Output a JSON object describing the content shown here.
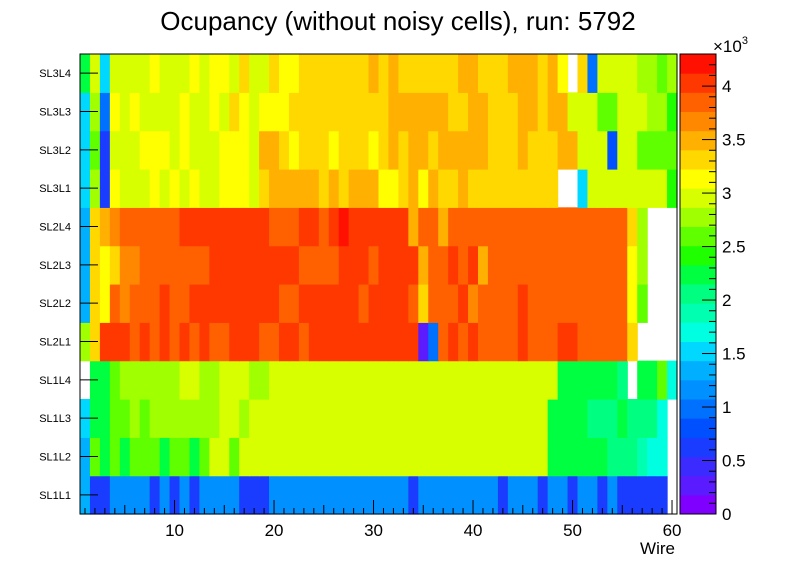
{
  "chart_data": {
    "type": "heatmap",
    "title": "Ocupancy (without noisy cells), run: 5792",
    "xlabel": "Wire",
    "ylabel": "",
    "xlim": [
      0.5,
      60.5
    ],
    "x_ticks": [
      "10",
      "20",
      "30",
      "40",
      "50",
      "60"
    ],
    "x_tick_values": [
      10,
      20,
      30,
      40,
      50,
      60
    ],
    "rows": [
      "SL1L1",
      "SL1L2",
      "SL1L3",
      "SL1L4",
      "SL2L1",
      "SL2L2",
      "SL2L3",
      "SL2L4",
      "SL3L1",
      "SL3L2",
      "SL3L3",
      "SL3L4"
    ],
    "wires": 60,
    "zlim": [
      0,
      4300
    ],
    "z_multiplier_label": "×10",
    "z_multiplier_exp": "3",
    "z_ticks": [
      "0",
      "0.5",
      "1",
      "1.5",
      "2",
      "2.5",
      "3",
      "3.5",
      "4"
    ],
    "z_tick_values": [
      0,
      500,
      1000,
      1500,
      2000,
      2500,
      3000,
      3500,
      4000
    ],
    "palette": [
      "#8000ff",
      "#5a1cff",
      "#3c2bff",
      "#1a3cff",
      "#0050ff",
      "#0070ff",
      "#0090ff",
      "#00b0ff",
      "#00d8ff",
      "#00ffe0",
      "#00ffb0",
      "#00ff80",
      "#00ff40",
      "#20ff00",
      "#60ff00",
      "#a0ff00",
      "#d8ff00",
      "#ffff00",
      "#ffd800",
      "#ffb000",
      "#ff8800",
      "#ff6000",
      "#ff3800",
      "#ff1000"
    ],
    "rows_data": {
      "SL1L1": [
        1300,
        600,
        600,
        1100,
        1100,
        1100,
        1100,
        600,
        1100,
        600,
        1100,
        600,
        1100,
        1100,
        1100,
        1100,
        600,
        600,
        600,
        1100,
        1100,
        1100,
        1100,
        1100,
        1100,
        1100,
        1100,
        1100,
        1100,
        1100,
        1100,
        1100,
        1100,
        600,
        1100,
        1100,
        1100,
        1100,
        1100,
        1100,
        1100,
        1100,
        600,
        1100,
        1100,
        1100,
        600,
        1100,
        1100,
        600,
        1100,
        1100,
        600,
        1100,
        600,
        600,
        600,
        600,
        600,
        null
      ],
      "SL1L2": [
        1400,
        2600,
        2300,
        2600,
        2300,
        2600,
        2600,
        2600,
        2300,
        2600,
        2600,
        2300,
        2600,
        2900,
        3000,
        2600,
        3000,
        3000,
        3000,
        2900,
        2900,
        3000,
        3000,
        3000,
        3000,
        3000,
        3000,
        3000,
        3000,
        3000,
        3000,
        3000,
        3000,
        3000,
        3000,
        3000,
        3000,
        3000,
        3000,
        3000,
        3000,
        3000,
        3000,
        3000,
        3000,
        3000,
        3000,
        2300,
        2300,
        2300,
        2300,
        2300,
        2300,
        2000,
        2000,
        2000,
        1900,
        1700,
        1700,
        null
      ],
      "SL1L3": [
        1500,
        2300,
        2300,
        2600,
        2600,
        2800,
        2600,
        2800,
        2800,
        2800,
        2800,
        2800,
        2800,
        2800,
        2900,
        3000,
        2800,
        2900,
        3000,
        3000,
        2900,
        2900,
        3000,
        2900,
        3000,
        3000,
        3000,
        3000,
        3000,
        3000,
        3000,
        3000,
        3000,
        3000,
        3000,
        3000,
        3000,
        3000,
        3000,
        3000,
        3000,
        3000,
        3000,
        3000,
        3000,
        3000,
        2900,
        2300,
        2300,
        2300,
        2300,
        2100,
        2100,
        2000,
        2300,
        2100,
        2100,
        2100,
        1700,
        null
      ],
      "SL1L4": [
        null,
        2300,
        2300,
        2600,
        2800,
        2800,
        2800,
        2800,
        2800,
        2800,
        3000,
        3000,
        2800,
        2800,
        3000,
        3000,
        3000,
        2800,
        2800,
        2900,
        2900,
        2900,
        2900,
        2900,
        3000,
        2900,
        3000,
        3000,
        3000,
        3000,
        3000,
        3000,
        3000,
        3000,
        3000,
        3000,
        3000,
        3000,
        3000,
        3000,
        3000,
        3000,
        3000,
        3000,
        3000,
        3000,
        3000,
        3000,
        2300,
        2300,
        2300,
        2300,
        2300,
        2300,
        2100,
        null,
        2300,
        2300,
        2600,
        1700
      ],
      "SL2L1": [
        2800,
        3400,
        4100,
        4100,
        4100,
        3800,
        4100,
        3800,
        4100,
        3800,
        4100,
        3800,
        4100,
        3800,
        3800,
        4100,
        4100,
        4100,
        3800,
        3800,
        4100,
        4100,
        3800,
        4100,
        4100,
        4100,
        4100,
        4100,
        4100,
        4100,
        4100,
        4100,
        4100,
        4100,
        300,
        1000,
        3800,
        4100,
        3800,
        4100,
        3800,
        3800,
        3800,
        3800,
        4100,
        3800,
        3800,
        3800,
        4100,
        4100,
        3800,
        3800,
        3800,
        3800,
        3800,
        3300,
        null,
        null,
        null,
        null
      ],
      "SL2L2": [
        1400,
        3300,
        3100,
        3800,
        3600,
        3800,
        3800,
        3800,
        4100,
        3800,
        3800,
        4100,
        4100,
        4100,
        4100,
        4100,
        4100,
        4100,
        4100,
        4100,
        3800,
        3800,
        4100,
        4100,
        4100,
        4100,
        4100,
        4100,
        3800,
        4100,
        4100,
        4100,
        4100,
        3800,
        3300,
        3800,
        3800,
        3800,
        4100,
        3600,
        3800,
        3800,
        3800,
        3800,
        4100,
        3800,
        3800,
        3800,
        3800,
        3800,
        3800,
        3800,
        3800,
        3800,
        3800,
        3200,
        2600,
        null,
        null,
        null
      ],
      "SL2L3": [
        1400,
        3300,
        3100,
        3400,
        3600,
        3600,
        3800,
        3800,
        3800,
        3800,
        3800,
        3800,
        3800,
        4100,
        4100,
        4100,
        4100,
        4100,
        4100,
        4100,
        4100,
        4100,
        3800,
        3800,
        3800,
        3800,
        4100,
        4100,
        4100,
        3800,
        4100,
        4100,
        4100,
        4100,
        3500,
        3800,
        3800,
        4100,
        3800,
        4100,
        3500,
        3800,
        3800,
        3800,
        3800,
        3800,
        3800,
        3800,
        3800,
        3800,
        3800,
        3800,
        3800,
        3800,
        3800,
        3100,
        2700,
        null,
        null,
        null
      ],
      "SL2L4": [
        1400,
        3400,
        3500,
        3600,
        3800,
        3800,
        3800,
        3800,
        3800,
        3800,
        4100,
        4100,
        4100,
        4100,
        4100,
        4100,
        4100,
        4100,
        4100,
        3800,
        3800,
        3800,
        4100,
        4100,
        3800,
        4100,
        4300,
        4100,
        4100,
        4100,
        4100,
        4100,
        4100,
        3500,
        3800,
        3800,
        3500,
        3800,
        3800,
        3800,
        3800,
        3800,
        3800,
        3800,
        3800,
        3800,
        3800,
        3800,
        3800,
        3800,
        3800,
        3800,
        3800,
        3800,
        3800,
        3400,
        2700,
        null,
        null,
        null
      ],
      "SL3L1": [
        1500,
        2800,
        700,
        3200,
        2900,
        3000,
        3000,
        3200,
        3000,
        3200,
        3000,
        3200,
        3000,
        3000,
        3100,
        3200,
        3200,
        3000,
        3400,
        3500,
        3500,
        3500,
        3500,
        3500,
        3400,
        3500,
        3300,
        3500,
        3500,
        3500,
        3200,
        3200,
        3300,
        3500,
        3100,
        3500,
        3300,
        3300,
        3500,
        3300,
        3300,
        3300,
        3300,
        3300,
        3300,
        3300,
        3300,
        3300,
        null,
        null,
        1500,
        3000,
        3000,
        3000,
        3000,
        3000,
        3000,
        3000,
        3000,
        2500
      ],
      "SL3L2": [
        1500,
        2600,
        700,
        3000,
        3000,
        3000,
        3200,
        3200,
        3200,
        2900,
        3200,
        3000,
        3000,
        3000,
        3200,
        3200,
        3200,
        3000,
        3500,
        3500,
        3300,
        3200,
        3300,
        3300,
        3300,
        3200,
        3300,
        3300,
        3300,
        3200,
        3300,
        3500,
        3300,
        3500,
        3500,
        3300,
        3500,
        3500,
        3500,
        3500,
        3500,
        3300,
        3300,
        3300,
        3500,
        3300,
        3300,
        3300,
        3500,
        3500,
        2900,
        2900,
        2900,
        800,
        2900,
        2900,
        2600,
        2600,
        2600,
        2600
      ],
      "SL3L3": [
        1500,
        2700,
        900,
        3200,
        2900,
        3200,
        3000,
        3000,
        3000,
        3000,
        3200,
        3000,
        3000,
        3100,
        3000,
        3300,
        3200,
        3000,
        3100,
        3200,
        3200,
        3400,
        3400,
        3400,
        3300,
        3300,
        3300,
        3400,
        3300,
        3300,
        3300,
        3500,
        3500,
        3500,
        3500,
        3500,
        3500,
        3300,
        3300,
        3500,
        3500,
        3300,
        3300,
        3300,
        3500,
        3500,
        3300,
        3500,
        3500,
        2900,
        2900,
        2900,
        2600,
        2600,
        2900,
        2900,
        2900,
        2800,
        2800,
        2500
      ],
      "SL3L4": [
        2200,
        2900,
        1500,
        3000,
        3000,
        3000,
        3000,
        3200,
        3000,
        3000,
        3000,
        3200,
        3000,
        3200,
        3200,
        3000,
        3300,
        3000,
        3000,
        3300,
        3200,
        3200,
        3300,
        3300,
        3300,
        3300,
        3300,
        3300,
        3300,
        3500,
        3300,
        3500,
        3300,
        3300,
        3300,
        3300,
        3300,
        3300,
        3500,
        3500,
        3300,
        3300,
        3300,
        3500,
        3500,
        3500,
        3300,
        3500,
        3200,
        null,
        3300,
        900,
        2900,
        2900,
        2900,
        2900,
        2800,
        2800,
        2600,
        2800
      ]
    }
  }
}
